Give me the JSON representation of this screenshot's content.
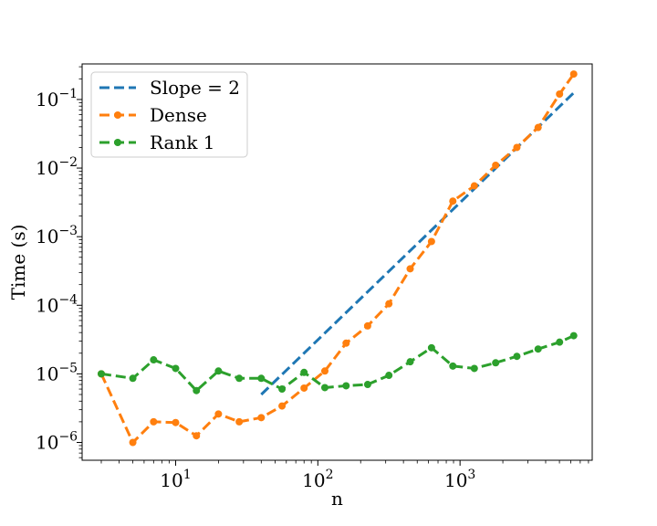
{
  "chart_data": {
    "type": "line",
    "xscale": "log",
    "yscale": "log",
    "xlabel": "n",
    "ylabel": "Time (s)",
    "xlim": [
      2.2,
      8500
    ],
    "ylim": [
      5.5e-07,
      0.33
    ],
    "xticks": [
      {
        "value": 10,
        "base": "10",
        "exp": "1"
      },
      {
        "value": 100,
        "base": "10",
        "exp": "2"
      },
      {
        "value": 1000,
        "base": "10",
        "exp": "3"
      }
    ],
    "yticks": [
      {
        "value": 1e-06,
        "base": "10",
        "exp": "−6"
      },
      {
        "value": 1e-05,
        "base": "10",
        "exp": "−5"
      },
      {
        "value": 0.0001,
        "base": "10",
        "exp": "−4"
      },
      {
        "value": 0.001,
        "base": "10",
        "exp": "−3"
      },
      {
        "value": 0.01,
        "base": "10",
        "exp": "−2"
      },
      {
        "value": 0.1,
        "base": "10",
        "exp": "−1"
      }
    ],
    "legend_position": "upper-left",
    "series": [
      {
        "name": "Slope = 2",
        "color": "#1f77b4",
        "marker": false,
        "x": [
          40,
          6300
        ],
        "y": [
          5e-06,
          0.125
        ]
      },
      {
        "name": "Dense",
        "color": "#ff7f0e",
        "marker": true,
        "x": [
          3,
          5,
          7,
          10,
          14,
          20,
          28,
          40,
          56,
          80,
          112,
          158,
          224,
          316,
          446,
          630,
          890,
          1260,
          1780,
          2510,
          3540,
          5010,
          6300
        ],
        "y": [
          1e-05,
          1e-06,
          2e-06,
          1.95e-06,
          1.25e-06,
          2.6e-06,
          2e-06,
          2.3e-06,
          3.4e-06,
          6.2e-06,
          1.1e-05,
          2.8e-05,
          5e-05,
          0.000105,
          0.00034,
          0.00085,
          0.0033,
          0.0055,
          0.011,
          0.02,
          0.039,
          0.12,
          0.235
        ]
      },
      {
        "name": "Rank 1",
        "color": "#2ca02c",
        "marker": true,
        "x": [
          3,
          5,
          7,
          10,
          14,
          20,
          28,
          40,
          56,
          80,
          112,
          158,
          224,
          316,
          446,
          630,
          890,
          1260,
          1780,
          2510,
          3540,
          5010,
          6300
        ],
        "y": [
          1e-05,
          8.6e-06,
          1.6e-05,
          1.2e-05,
          5.7e-06,
          1.1e-05,
          8.6e-06,
          8.6e-06,
          6e-06,
          1.05e-05,
          6.3e-06,
          6.7e-06,
          7e-06,
          9.5e-06,
          1.5e-05,
          2.4e-05,
          1.3e-05,
          1.2e-05,
          1.45e-05,
          1.8e-05,
          2.3e-05,
          2.9e-05,
          3.6e-05
        ]
      }
    ]
  }
}
